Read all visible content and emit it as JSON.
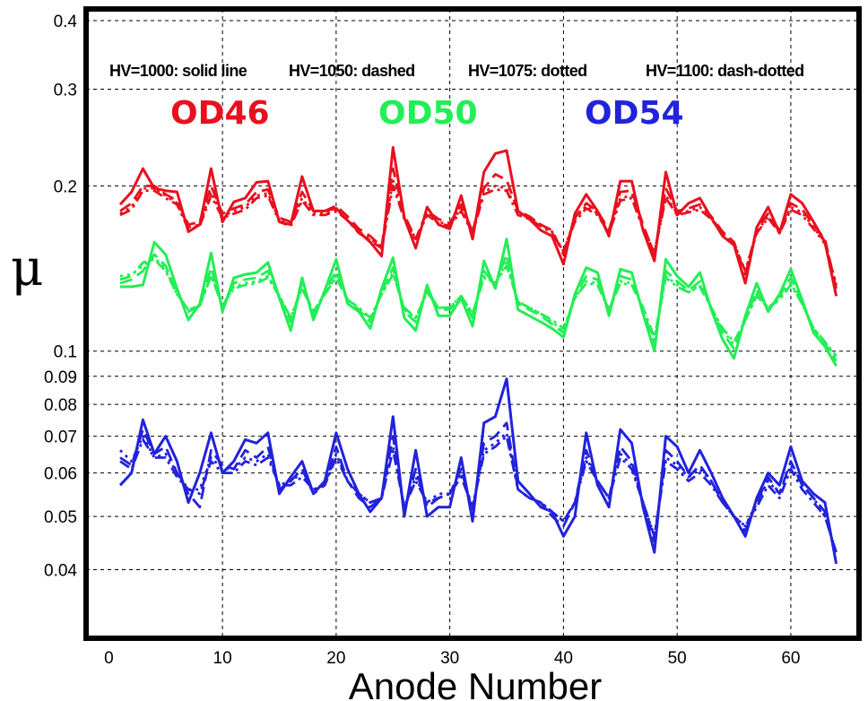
{
  "chart_data": {
    "type": "line",
    "xlabel": "Anode Number",
    "ylabel": "μ",
    "xlim": [
      -2,
      66
    ],
    "ylim": [
      0.03,
      0.42
    ],
    "yscale": "log",
    "grid": true,
    "x_ticks": [
      0,
      10,
      20,
      30,
      40,
      50,
      60
    ],
    "y_ticks": [
      {
        "value": 0.04,
        "label": "0.04"
      },
      {
        "value": 0.05,
        "label": "0.05"
      },
      {
        "value": 0.06,
        "label": "0.06"
      },
      {
        "value": 0.07,
        "label": "0.07"
      },
      {
        "value": 0.08,
        "label": "0.08"
      },
      {
        "value": 0.09,
        "label": "0.09"
      },
      {
        "value": 0.1,
        "label": "0.1"
      },
      {
        "value": 0.2,
        "label": "0.2"
      },
      {
        "value": 0.3,
        "label": "0.3"
      },
      {
        "value": 0.4,
        "label": "0.4"
      }
    ],
    "annotations": [
      "HV=1000: solid line",
      "HV=1050: dashed",
      "HV=1075: dotted",
      "HV=1100: dash-dotted"
    ],
    "group_labels": [
      {
        "text": "OD46",
        "color": "#e8101e"
      },
      {
        "text": "OD50",
        "color": "#22ee55"
      },
      {
        "text": "OD54",
        "color": "#2222dd"
      }
    ],
    "x": [
      1,
      2,
      3,
      4,
      5,
      6,
      7,
      8,
      9,
      10,
      11,
      12,
      13,
      14,
      15,
      16,
      17,
      18,
      19,
      20,
      21,
      22,
      23,
      24,
      25,
      26,
      27,
      28,
      29,
      30,
      31,
      32,
      33,
      34,
      35,
      36,
      37,
      38,
      39,
      40,
      41,
      42,
      43,
      44,
      45,
      46,
      47,
      48,
      49,
      50,
      51,
      52,
      53,
      54,
      55,
      56,
      57,
      58,
      59,
      60,
      61,
      62,
      63,
      64
    ],
    "series": [
      {
        "group": "OD46",
        "hv": 1000,
        "dash": "solid",
        "color": "#e8101e",
        "values": [
          0.185,
          0.195,
          0.215,
          0.198,
          0.196,
          0.195,
          0.165,
          0.17,
          0.215,
          0.172,
          0.187,
          0.19,
          0.203,
          0.204,
          0.172,
          0.17,
          0.208,
          0.18,
          0.18,
          0.182,
          0.173,
          0.165,
          0.158,
          0.149,
          0.235,
          0.175,
          0.154,
          0.183,
          0.17,
          0.167,
          0.192,
          0.16,
          0.212,
          0.229,
          0.232,
          0.18,
          0.174,
          0.166,
          0.162,
          0.144,
          0.178,
          0.193,
          0.18,
          0.162,
          0.204,
          0.204,
          0.166,
          0.146,
          0.212,
          0.177,
          0.186,
          0.19,
          0.175,
          0.162,
          0.156,
          0.133,
          0.168,
          0.183,
          0.164,
          0.193,
          0.186,
          0.172,
          0.158,
          0.126
        ]
      },
      {
        "group": "OD46",
        "hv": 1050,
        "dash": "dashed",
        "color": "#e8101e",
        "values": [
          0.18,
          0.186,
          0.2,
          0.2,
          0.193,
          0.188,
          0.17,
          0.172,
          0.2,
          0.178,
          0.182,
          0.185,
          0.195,
          0.197,
          0.175,
          0.172,
          0.195,
          0.18,
          0.18,
          0.184,
          0.176,
          0.167,
          0.162,
          0.155,
          0.215,
          0.177,
          0.16,
          0.18,
          0.174,
          0.171,
          0.185,
          0.165,
          0.198,
          0.21,
          0.205,
          0.18,
          0.176,
          0.17,
          0.166,
          0.15,
          0.175,
          0.186,
          0.18,
          0.166,
          0.195,
          0.196,
          0.17,
          0.15,
          0.198,
          0.18,
          0.182,
          0.185,
          0.176,
          0.165,
          0.158,
          0.138,
          0.167,
          0.178,
          0.166,
          0.186,
          0.181,
          0.17,
          0.16,
          0.13
        ]
      },
      {
        "group": "OD46",
        "hv": 1075,
        "dash": "dotted",
        "color": "#e8101e",
        "values": [
          0.178,
          0.183,
          0.198,
          0.198,
          0.192,
          0.186,
          0.168,
          0.17,
          0.195,
          0.176,
          0.18,
          0.183,
          0.192,
          0.194,
          0.173,
          0.17,
          0.19,
          0.178,
          0.178,
          0.181,
          0.174,
          0.165,
          0.16,
          0.155,
          0.205,
          0.175,
          0.16,
          0.178,
          0.172,
          0.17,
          0.182,
          0.165,
          0.195,
          0.2,
          0.198,
          0.178,
          0.175,
          0.17,
          0.165,
          0.152,
          0.174,
          0.184,
          0.178,
          0.165,
          0.19,
          0.192,
          0.168,
          0.151,
          0.192,
          0.178,
          0.18,
          0.183,
          0.175,
          0.164,
          0.157,
          0.14,
          0.165,
          0.176,
          0.165,
          0.183,
          0.179,
          0.168,
          0.158,
          0.132
        ]
      },
      {
        "group": "OD46",
        "hv": 1100,
        "dash": "dashdot",
        "color": "#e8101e",
        "values": [
          0.177,
          0.181,
          0.196,
          0.196,
          0.19,
          0.185,
          0.167,
          0.169,
          0.192,
          0.175,
          0.178,
          0.181,
          0.19,
          0.192,
          0.172,
          0.169,
          0.188,
          0.177,
          0.177,
          0.18,
          0.173,
          0.164,
          0.159,
          0.154,
          0.2,
          0.174,
          0.159,
          0.177,
          0.171,
          0.169,
          0.18,
          0.164,
          0.193,
          0.197,
          0.196,
          0.177,
          0.174,
          0.169,
          0.164,
          0.152,
          0.172,
          0.182,
          0.177,
          0.164,
          0.188,
          0.19,
          0.167,
          0.151,
          0.19,
          0.177,
          0.179,
          0.181,
          0.174,
          0.163,
          0.156,
          0.14,
          0.164,
          0.175,
          0.164,
          0.181,
          0.177,
          0.167,
          0.157,
          0.132
        ]
      },
      {
        "group": "OD50",
        "hv": 1000,
        "dash": "solid",
        "color": "#22ee55",
        "values": [
          0.131,
          0.131,
          0.132,
          0.158,
          0.15,
          0.13,
          0.114,
          0.122,
          0.151,
          0.118,
          0.136,
          0.138,
          0.139,
          0.145,
          0.125,
          0.109,
          0.136,
          0.114,
          0.129,
          0.147,
          0.122,
          0.118,
          0.11,
          0.13,
          0.148,
          0.115,
          0.109,
          0.132,
          0.116,
          0.116,
          0.125,
          0.111,
          0.146,
          0.13,
          0.16,
          0.119,
          0.116,
          0.113,
          0.11,
          0.106,
          0.127,
          0.142,
          0.139,
          0.116,
          0.141,
          0.139,
          0.117,
          0.1,
          0.147,
          0.137,
          0.131,
          0.139,
          0.119,
          0.105,
          0.097,
          0.116,
          0.133,
          0.118,
          0.127,
          0.141,
          0.124,
          0.108,
          0.102,
          0.094
        ]
      },
      {
        "group": "OD50",
        "hv": 1050,
        "dash": "dashed",
        "color": "#22ee55",
        "values": [
          0.133,
          0.135,
          0.14,
          0.15,
          0.143,
          0.128,
          0.118,
          0.121,
          0.142,
          0.12,
          0.133,
          0.135,
          0.136,
          0.14,
          0.126,
          0.113,
          0.133,
          0.117,
          0.128,
          0.14,
          0.124,
          0.119,
          0.113,
          0.128,
          0.142,
          0.118,
          0.113,
          0.13,
          0.119,
          0.119,
          0.126,
          0.115,
          0.14,
          0.132,
          0.15,
          0.122,
          0.119,
          0.116,
          0.112,
          0.108,
          0.126,
          0.137,
          0.135,
          0.118,
          0.137,
          0.135,
          0.119,
          0.103,
          0.14,
          0.134,
          0.129,
          0.134,
          0.12,
          0.108,
          0.101,
          0.114,
          0.129,
          0.119,
          0.126,
          0.136,
          0.123,
          0.109,
          0.103,
          0.096
        ]
      },
      {
        "group": "OD50",
        "hv": 1075,
        "dash": "dotted",
        "color": "#22ee55",
        "values": [
          0.137,
          0.138,
          0.143,
          0.148,
          0.141,
          0.127,
          0.119,
          0.121,
          0.138,
          0.121,
          0.131,
          0.133,
          0.134,
          0.137,
          0.126,
          0.115,
          0.131,
          0.118,
          0.127,
          0.137,
          0.124,
          0.12,
          0.114,
          0.127,
          0.139,
          0.119,
          0.115,
          0.129,
          0.12,
          0.12,
          0.126,
          0.117,
          0.137,
          0.133,
          0.145,
          0.123,
          0.12,
          0.117,
          0.113,
          0.109,
          0.125,
          0.134,
          0.133,
          0.119,
          0.134,
          0.133,
          0.12,
          0.105,
          0.137,
          0.132,
          0.128,
          0.132,
          0.12,
          0.109,
          0.103,
          0.114,
          0.127,
          0.12,
          0.125,
          0.133,
          0.122,
          0.11,
          0.104,
          0.097
        ]
      },
      {
        "group": "OD50",
        "hv": 1100,
        "dash": "dashdot",
        "color": "#22ee55",
        "values": [
          0.135,
          0.137,
          0.145,
          0.147,
          0.14,
          0.127,
          0.119,
          0.121,
          0.137,
          0.121,
          0.13,
          0.132,
          0.133,
          0.136,
          0.126,
          0.115,
          0.13,
          0.118,
          0.127,
          0.136,
          0.124,
          0.12,
          0.115,
          0.127,
          0.138,
          0.12,
          0.115,
          0.128,
          0.12,
          0.12,
          0.126,
          0.117,
          0.136,
          0.133,
          0.143,
          0.123,
          0.12,
          0.117,
          0.114,
          0.11,
          0.125,
          0.133,
          0.132,
          0.119,
          0.133,
          0.132,
          0.12,
          0.106,
          0.136,
          0.131,
          0.128,
          0.131,
          0.12,
          0.11,
          0.104,
          0.114,
          0.126,
          0.12,
          0.124,
          0.132,
          0.122,
          0.11,
          0.104,
          0.098
        ]
      },
      {
        "group": "OD54",
        "hv": 1000,
        "dash": "solid",
        "color": "#2222dd",
        "values": [
          0.057,
          0.06,
          0.075,
          0.065,
          0.07,
          0.063,
          0.053,
          0.06,
          0.071,
          0.06,
          0.063,
          0.069,
          0.068,
          0.071,
          0.055,
          0.059,
          0.063,
          0.055,
          0.058,
          0.071,
          0.061,
          0.055,
          0.051,
          0.054,
          0.076,
          0.05,
          0.066,
          0.05,
          0.052,
          0.052,
          0.064,
          0.049,
          0.074,
          0.076,
          0.089,
          0.058,
          0.055,
          0.052,
          0.051,
          0.046,
          0.05,
          0.071,
          0.057,
          0.052,
          0.072,
          0.068,
          0.052,
          0.043,
          0.07,
          0.067,
          0.06,
          0.066,
          0.06,
          0.054,
          0.05,
          0.046,
          0.054,
          0.06,
          0.057,
          0.067,
          0.058,
          0.055,
          0.053,
          0.041
        ]
      },
      {
        "group": "OD54",
        "hv": 1050,
        "dash": "dashed",
        "color": "#2222dd",
        "values": [
          0.064,
          0.062,
          0.072,
          0.065,
          0.067,
          0.06,
          0.055,
          0.052,
          0.066,
          0.062,
          0.061,
          0.066,
          0.064,
          0.067,
          0.056,
          0.058,
          0.061,
          0.055,
          0.057,
          0.067,
          0.058,
          0.054,
          0.052,
          0.054,
          0.07,
          0.051,
          0.061,
          0.052,
          0.054,
          0.055,
          0.061,
          0.051,
          0.068,
          0.07,
          0.074,
          0.056,
          0.054,
          0.053,
          0.05,
          0.048,
          0.053,
          0.066,
          0.058,
          0.054,
          0.067,
          0.063,
          0.053,
          0.045,
          0.066,
          0.063,
          0.059,
          0.062,
          0.058,
          0.053,
          0.05,
          0.047,
          0.053,
          0.059,
          0.055,
          0.063,
          0.057,
          0.054,
          0.051,
          0.042
        ]
      },
      {
        "group": "OD54",
        "hv": 1075,
        "dash": "dotted",
        "color": "#2222dd",
        "values": [
          0.066,
          0.063,
          0.07,
          0.064,
          0.065,
          0.06,
          0.056,
          0.056,
          0.064,
          0.061,
          0.061,
          0.064,
          0.063,
          0.065,
          0.057,
          0.058,
          0.06,
          0.056,
          0.057,
          0.065,
          0.058,
          0.055,
          0.053,
          0.054,
          0.067,
          0.052,
          0.059,
          0.053,
          0.055,
          0.055,
          0.06,
          0.052,
          0.066,
          0.068,
          0.071,
          0.056,
          0.054,
          0.053,
          0.051,
          0.049,
          0.053,
          0.064,
          0.058,
          0.054,
          0.065,
          0.062,
          0.053,
          0.046,
          0.064,
          0.062,
          0.059,
          0.061,
          0.058,
          0.053,
          0.05,
          0.048,
          0.053,
          0.058,
          0.055,
          0.062,
          0.057,
          0.054,
          0.05,
          0.043
        ]
      },
      {
        "group": "OD54",
        "hv": 1100,
        "dash": "dashdot",
        "color": "#2222dd",
        "values": [
          0.063,
          0.061,
          0.069,
          0.064,
          0.064,
          0.059,
          0.056,
          0.055,
          0.063,
          0.06,
          0.06,
          0.063,
          0.062,
          0.064,
          0.057,
          0.057,
          0.059,
          0.056,
          0.057,
          0.064,
          0.058,
          0.055,
          0.053,
          0.054,
          0.066,
          0.052,
          0.058,
          0.053,
          0.054,
          0.055,
          0.059,
          0.052,
          0.065,
          0.067,
          0.07,
          0.056,
          0.054,
          0.053,
          0.051,
          0.049,
          0.053,
          0.063,
          0.058,
          0.054,
          0.064,
          0.061,
          0.053,
          0.046,
          0.063,
          0.061,
          0.058,
          0.06,
          0.057,
          0.053,
          0.05,
          0.048,
          0.052,
          0.057,
          0.054,
          0.061,
          0.056,
          0.053,
          0.05,
          0.043
        ]
      }
    ]
  }
}
